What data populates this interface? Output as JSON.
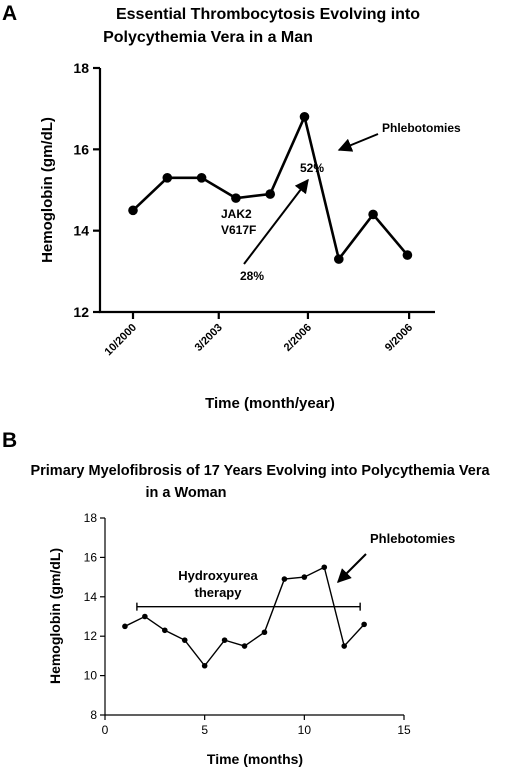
{
  "panel_a": {
    "letter": "A",
    "title_line1": "Essential Thrombocytosis Evolving into",
    "title_line2": "Polycythemia Vera in a Man",
    "annotations": {
      "phlebotomies": "Phlebotomies",
      "jak2_line1": "JAK2",
      "jak2_line2": "V617F",
      "start_percent": "28%",
      "end_percent": "52%"
    }
  },
  "panel_b": {
    "letter": "B",
    "title_line1": "Primary Myelofibrosis of 17 Years Evolving into Polycythemia Vera",
    "title_line2": "in a Woman",
    "annotations": {
      "phlebotomies": "Phlebotomies",
      "therapy_line1": "Hydroxyurea",
      "therapy_line2": "therapy"
    }
  },
  "chart_data": [
    {
      "type": "line",
      "title": "Essential Thrombocytosis Evolving into Polycythemia Vera in a Man",
      "xlabel": "Time (month/year)",
      "ylabel": "Hemoglobin  (gm/dL)",
      "ylim": [
        12,
        18
      ],
      "yticks": [
        12,
        14,
        16,
        18
      ],
      "x_tick_labels": [
        {
          "label": "10/2000",
          "position": 0
        },
        {
          "label": "3/2003",
          "position": 2.5
        },
        {
          "label": "2/2006",
          "position": 5.1
        },
        {
          "label": "9/2006",
          "position": 8.05
        }
      ],
      "x": [
        0,
        1,
        2,
        3,
        4,
        5,
        6,
        7,
        8
      ],
      "values": [
        14.5,
        15.3,
        15.3,
        14.8,
        14.9,
        16.8,
        13.3,
        14.4,
        13.4
      ],
      "annotations": [
        {
          "text": "Phlebotomies"
        },
        {
          "text": "JAK2 V617F"
        },
        {
          "text": "28%"
        },
        {
          "text": "52%"
        }
      ]
    },
    {
      "type": "line",
      "title": "Primary Myelofibrosis of 17 Years Evolving into Polycythemia Vera in a Woman",
      "xlabel": "Time (months)",
      "ylabel": "Hemoglobin  (gm/dL)",
      "xlim": [
        0,
        15
      ],
      "ylim": [
        8,
        18
      ],
      "xticks": [
        0,
        5,
        10,
        15
      ],
      "yticks": [
        8,
        10,
        12,
        14,
        16,
        18
      ],
      "x": [
        1,
        2,
        3,
        4,
        5,
        6,
        7,
        8,
        9,
        10,
        11,
        12,
        13
      ],
      "values": [
        12.5,
        13.0,
        12.3,
        11.8,
        10.5,
        11.8,
        11.5,
        12.2,
        14.9,
        15.0,
        15.5,
        11.5,
        12.6
      ],
      "therapy_interval": {
        "label": "Hydroxyurea therapy",
        "start": 1.6,
        "end": 12.8,
        "level": 13.5
      },
      "annotations": [
        {
          "text": "Phlebotomies"
        },
        {
          "text": "Hydroxyurea therapy"
        }
      ]
    }
  ]
}
